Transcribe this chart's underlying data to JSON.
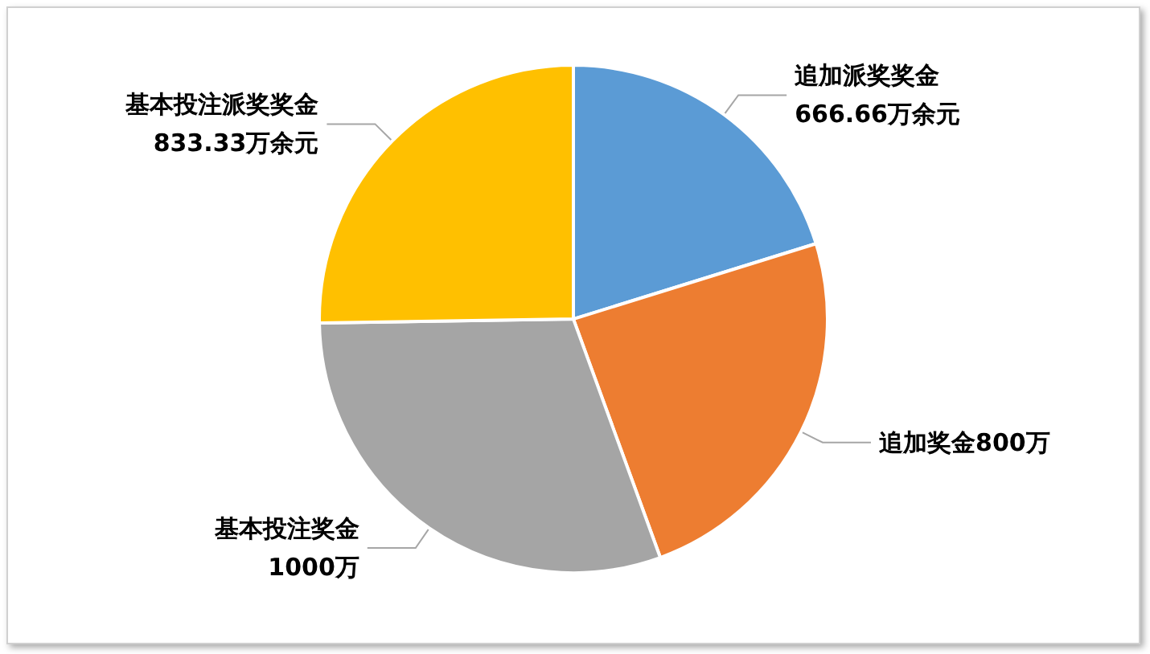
{
  "chart_data": {
    "type": "pie",
    "categories": [
      "追加派奖奖金",
      "追加奖金",
      "基本投注奖金",
      "基本投注派奖奖金"
    ],
    "values": [
      666.66,
      800,
      1000,
      833.33
    ],
    "value_labels": [
      "666.66万余元",
      "800万",
      "1000万",
      "833.33万余元"
    ],
    "colors": [
      "#5b9bd5",
      "#ed7d31",
      "#a5a5a5",
      "#ffc000"
    ],
    "legend": false
  }
}
